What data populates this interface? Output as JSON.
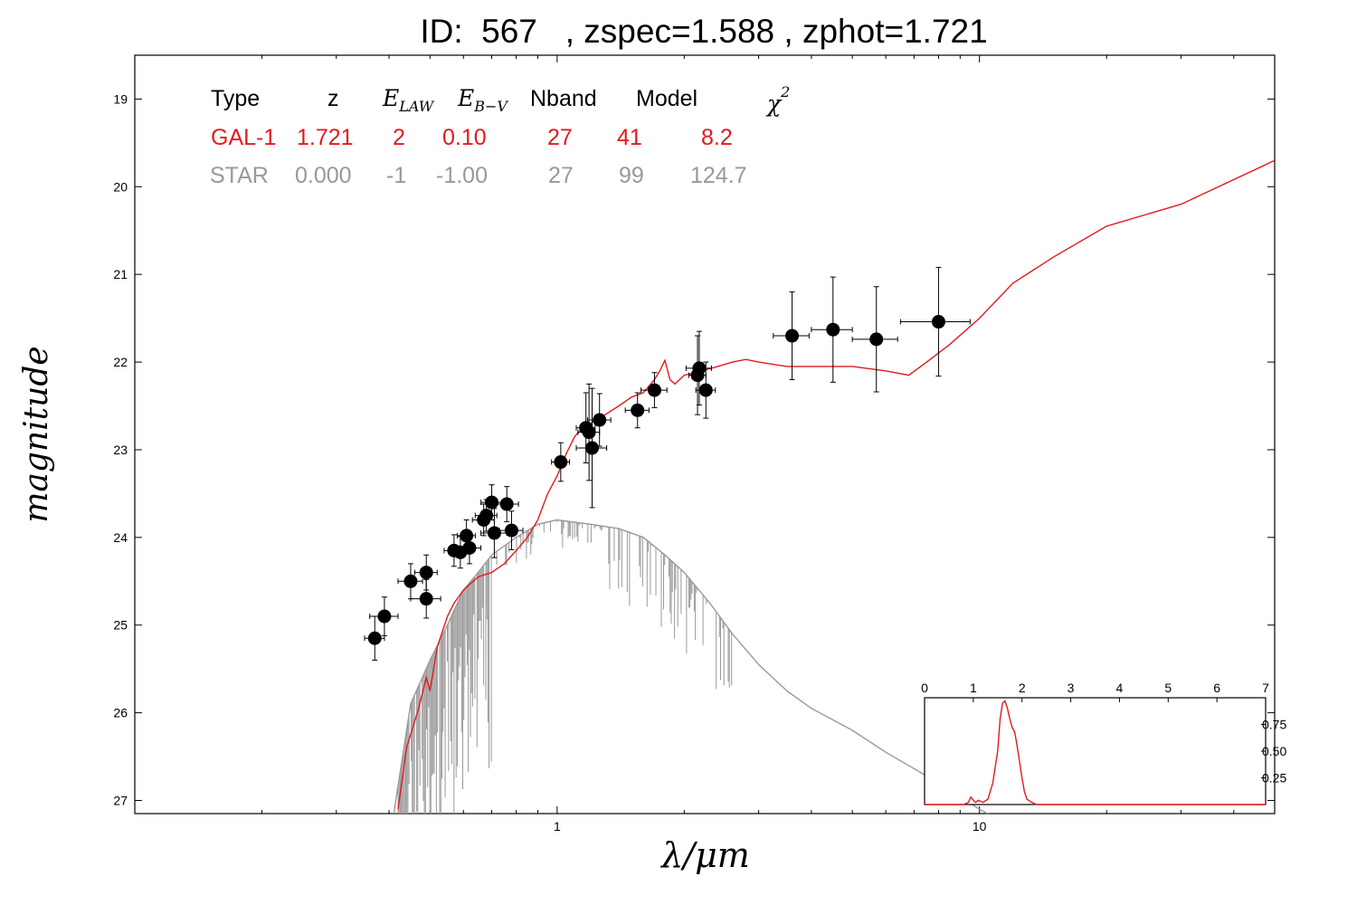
{
  "title": "ID:  567   , zspec=1.588 , zphot=1.721",
  "table": {
    "headers": [
      "Type",
      "z",
      "E",
      "LAW",
      "E",
      "B−V",
      "Nband",
      "Model",
      "χ",
      "2"
    ],
    "rows": [
      {
        "cells": [
          "GAL-1",
          "1.721",
          "2",
          "0.10",
          "27",
          "41",
          "8.2"
        ],
        "color": "#e41a1c"
      },
      {
        "cells": [
          "STAR",
          "0.000",
          "-1",
          "-1.00",
          "27",
          "99",
          "124.7"
        ],
        "color": "#999999"
      }
    ]
  },
  "chart_data": {
    "type": "scatter",
    "xlabel": "λ/μm",
    "ylabel": "magnitude",
    "xscale": "log",
    "xlim": [
      0.1,
      50
    ],
    "ylim": [
      27.15,
      18.5
    ],
    "x_ticks": [
      {
        "value": 1,
        "label": "1"
      },
      {
        "value": 10,
        "label": "10"
      }
    ],
    "y_ticks": [
      19,
      20,
      21,
      22,
      23,
      24,
      25,
      26,
      27
    ],
    "series": [
      {
        "name": "GAL-1",
        "kind": "line",
        "color": "#e41a1c",
        "x": [
          0.42,
          0.44,
          0.47,
          0.49,
          0.5,
          0.52,
          0.55,
          0.57,
          0.6,
          0.65,
          0.7,
          0.75,
          0.8,
          0.85,
          0.9,
          0.95,
          1.0,
          1.05,
          1.1,
          1.15,
          1.2,
          1.3,
          1.4,
          1.5,
          1.6,
          1.7,
          1.75,
          1.8,
          1.85,
          1.9,
          2.0,
          2.2,
          2.4,
          2.6,
          2.8,
          3.0,
          3.5,
          4.0,
          5.0,
          6.0,
          6.8,
          7.5,
          8.5,
          10,
          12,
          15,
          20,
          30,
          50
        ],
        "y": [
          27.1,
          26.4,
          25.95,
          25.6,
          25.75,
          25.25,
          24.9,
          24.75,
          24.6,
          24.45,
          24.4,
          24.3,
          24.15,
          24.0,
          23.8,
          23.5,
          23.3,
          23.05,
          22.85,
          22.75,
          22.7,
          22.6,
          22.5,
          22.4,
          22.35,
          22.2,
          22.1,
          21.98,
          22.2,
          22.25,
          22.15,
          22.1,
          22.05,
          22.0,
          21.97,
          22.0,
          22.05,
          22.05,
          22.05,
          22.1,
          22.15,
          22.0,
          21.8,
          21.5,
          21.1,
          20.8,
          20.45,
          20.2,
          19.7
        ]
      },
      {
        "name": "STAR",
        "kind": "line",
        "color": "#999999",
        "x": [
          0.4,
          0.45,
          0.5,
          0.55,
          0.6,
          0.65,
          0.7,
          0.8,
          0.9,
          1.0,
          1.2,
          1.4,
          1.6,
          1.8,
          2.0,
          2.3,
          2.6,
          3.0,
          3.5,
          4.0,
          5.0,
          6.0,
          8.0,
          10.0,
          12.0
        ],
        "y": [
          27.5,
          25.9,
          25.4,
          25.0,
          24.6,
          24.4,
          24.2,
          24.0,
          23.85,
          23.8,
          23.85,
          23.9,
          24.0,
          24.2,
          24.4,
          24.75,
          25.1,
          25.45,
          25.75,
          25.95,
          26.2,
          26.45,
          26.8,
          27.1,
          27.3
        ]
      }
    ],
    "points": [
      {
        "x": 0.37,
        "y": 25.15,
        "xerr": 0.02,
        "yerr": 0.25
      },
      {
        "x": 0.39,
        "y": 24.9,
        "xerr": 0.03,
        "yerr": 0.22
      },
      {
        "x": 0.45,
        "y": 24.5,
        "xerr": 0.03,
        "yerr": 0.2
      },
      {
        "x": 0.49,
        "y": 24.4,
        "xerr": 0.03,
        "yerr": 0.2
      },
      {
        "x": 0.49,
        "y": 24.7,
        "xerr": 0.04,
        "yerr": 0.22
      },
      {
        "x": 0.57,
        "y": 24.15,
        "xerr": 0.03,
        "yerr": 0.18
      },
      {
        "x": 0.59,
        "y": 24.17,
        "xerr": 0.03,
        "yerr": 0.18
      },
      {
        "x": 0.61,
        "y": 23.98,
        "xerr": 0.03,
        "yerr": 0.18
      },
      {
        "x": 0.62,
        "y": 24.12,
        "xerr": 0.04,
        "yerr": 0.18
      },
      {
        "x": 0.67,
        "y": 23.8,
        "xerr": 0.04,
        "yerr": 0.18
      },
      {
        "x": 0.68,
        "y": 23.75,
        "xerr": 0.04,
        "yerr": 0.18
      },
      {
        "x": 0.7,
        "y": 23.6,
        "xerr": 0.04,
        "yerr": 0.2
      },
      {
        "x": 0.71,
        "y": 23.95,
        "xerr": 0.05,
        "yerr": 0.28
      },
      {
        "x": 0.76,
        "y": 23.62,
        "xerr": 0.05,
        "yerr": 0.2
      },
      {
        "x": 0.78,
        "y": 23.92,
        "xerr": 0.05,
        "yerr": 0.22
      },
      {
        "x": 1.02,
        "y": 23.14,
        "xerr": 0.05,
        "yerr": 0.22
      },
      {
        "x": 1.17,
        "y": 22.75,
        "xerr": 0.06,
        "yerr": 0.4
      },
      {
        "x": 1.19,
        "y": 22.8,
        "xerr": 0.07,
        "yerr": 0.55
      },
      {
        "x": 1.21,
        "y": 22.98,
        "xerr": 0.1,
        "yerr": 0.68
      },
      {
        "x": 1.26,
        "y": 22.66,
        "xerr": 0.08,
        "yerr": 0.3
      },
      {
        "x": 1.55,
        "y": 22.55,
        "xerr": 0.1,
        "yerr": 0.2
      },
      {
        "x": 1.7,
        "y": 22.32,
        "xerr": 0.12,
        "yerr": 0.2
      },
      {
        "x": 2.15,
        "y": 22.15,
        "xerr": 0.1,
        "yerr": 0.45
      },
      {
        "x": 2.17,
        "y": 22.07,
        "xerr": 0.15,
        "yerr": 0.42
      },
      {
        "x": 2.25,
        "y": 22.32,
        "xerr": 0.12,
        "yerr": 0.32
      },
      {
        "x": 3.6,
        "y": 21.7,
        "xerr": 0.35,
        "yerr": 0.5
      },
      {
        "x": 4.5,
        "y": 21.63,
        "xerr": 0.5,
        "yerr": 0.6
      },
      {
        "x": 5.7,
        "y": 21.74,
        "xerr": 0.7,
        "yerr": 0.6
      },
      {
        "x": 8.0,
        "y": 21.54,
        "xerr": 1.5,
        "yerr": 0.62
      }
    ],
    "inset": {
      "type": "line",
      "xlim": [
        0,
        7
      ],
      "ylim": [
        0,
        1.0
      ],
      "x_ticks": [
        0,
        1,
        2,
        3,
        4,
        5,
        6,
        7
      ],
      "y_ticks": [
        {
          "value": 0.25,
          "label": "0.25"
        },
        {
          "value": 0.5,
          "label": "0.50"
        },
        {
          "value": 0.75,
          "label": "0.75"
        }
      ],
      "color": "#e41a1c",
      "x": [
        0,
        0.8,
        0.9,
        0.95,
        1.0,
        1.05,
        1.1,
        1.2,
        1.3,
        1.4,
        1.5,
        1.55,
        1.6,
        1.65,
        1.7,
        1.75,
        1.8,
        1.85,
        1.9,
        1.95,
        2.0,
        2.05,
        2.1,
        2.2,
        2.3,
        3,
        7
      ],
      "y": [
        0.0,
        0.0,
        0.02,
        0.07,
        0.04,
        0.02,
        0.04,
        0.02,
        0.05,
        0.2,
        0.5,
        0.8,
        0.95,
        0.97,
        0.9,
        0.8,
        0.72,
        0.68,
        0.55,
        0.4,
        0.25,
        0.12,
        0.05,
        0.02,
        0.0,
        0.0,
        0.0
      ]
    }
  }
}
